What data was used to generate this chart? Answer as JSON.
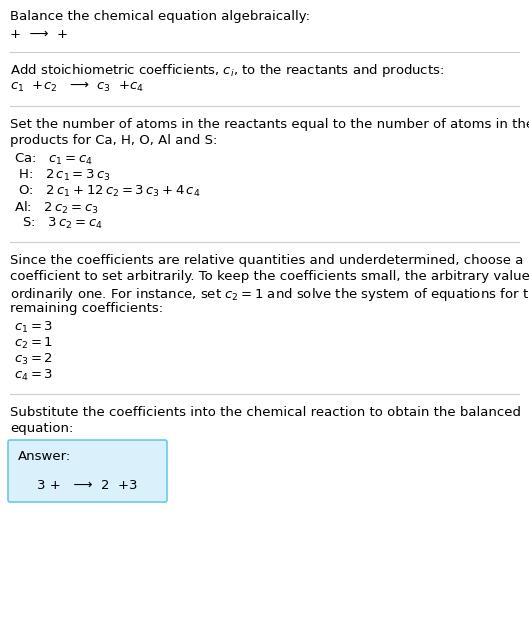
{
  "title": "Balance the chemical equation algebraically:",
  "line1": "+  ⟶  +",
  "section2_title": "Add stoichiometric coefficients, $c_i$, to the reactants and products:",
  "line2": "$c_1$  +$c_2$   ⟶  $c_3$  +$c_4$",
  "section3_line1": "Set the number of atoms in the reactants equal to the number of atoms in the",
  "section3_line2": "products for Ca, H, O, Al and S:",
  "eq_ca": "Ca:   $c_1 = c_4$",
  "eq_h": " H:   $2\\,c_1 = 3\\,c_3$",
  "eq_o": " O:   $2\\,c_1 + 12\\,c_2 = 3\\,c_3 + 4\\,c_4$",
  "eq_al": "Al:   $2\\,c_2 = c_3$",
  "eq_s": "  S:   $3\\,c_2 = c_4$",
  "section4_line1": "Since the coefficients are relative quantities and underdetermined, choose a",
  "section4_line2": "coefficient to set arbitrarily. To keep the coefficients small, the arbitrary value is",
  "section4_line3": "ordinarily one. For instance, set $c_2 = 1$ and solve the system of equations for the",
  "section4_line4": "remaining coefficients:",
  "sol_c1": "$c_1 = 3$",
  "sol_c2": "$c_2 = 1$",
  "sol_c3": "$c_3 = 2$",
  "sol_c4": "$c_4 = 3$",
  "section5_line1": "Substitute the coefficients into the chemical reaction to obtain the balanced",
  "section5_line2": "equation:",
  "answer_label": "Answer:",
  "answer_eq": "3 +   ⟶  2  +3",
  "bg_color": "#ffffff",
  "text_color": "#000000",
  "box_fill": "#daf0fb",
  "box_edge": "#6bc8e8",
  "sep_color": "#cccccc",
  "fs": 9.5
}
